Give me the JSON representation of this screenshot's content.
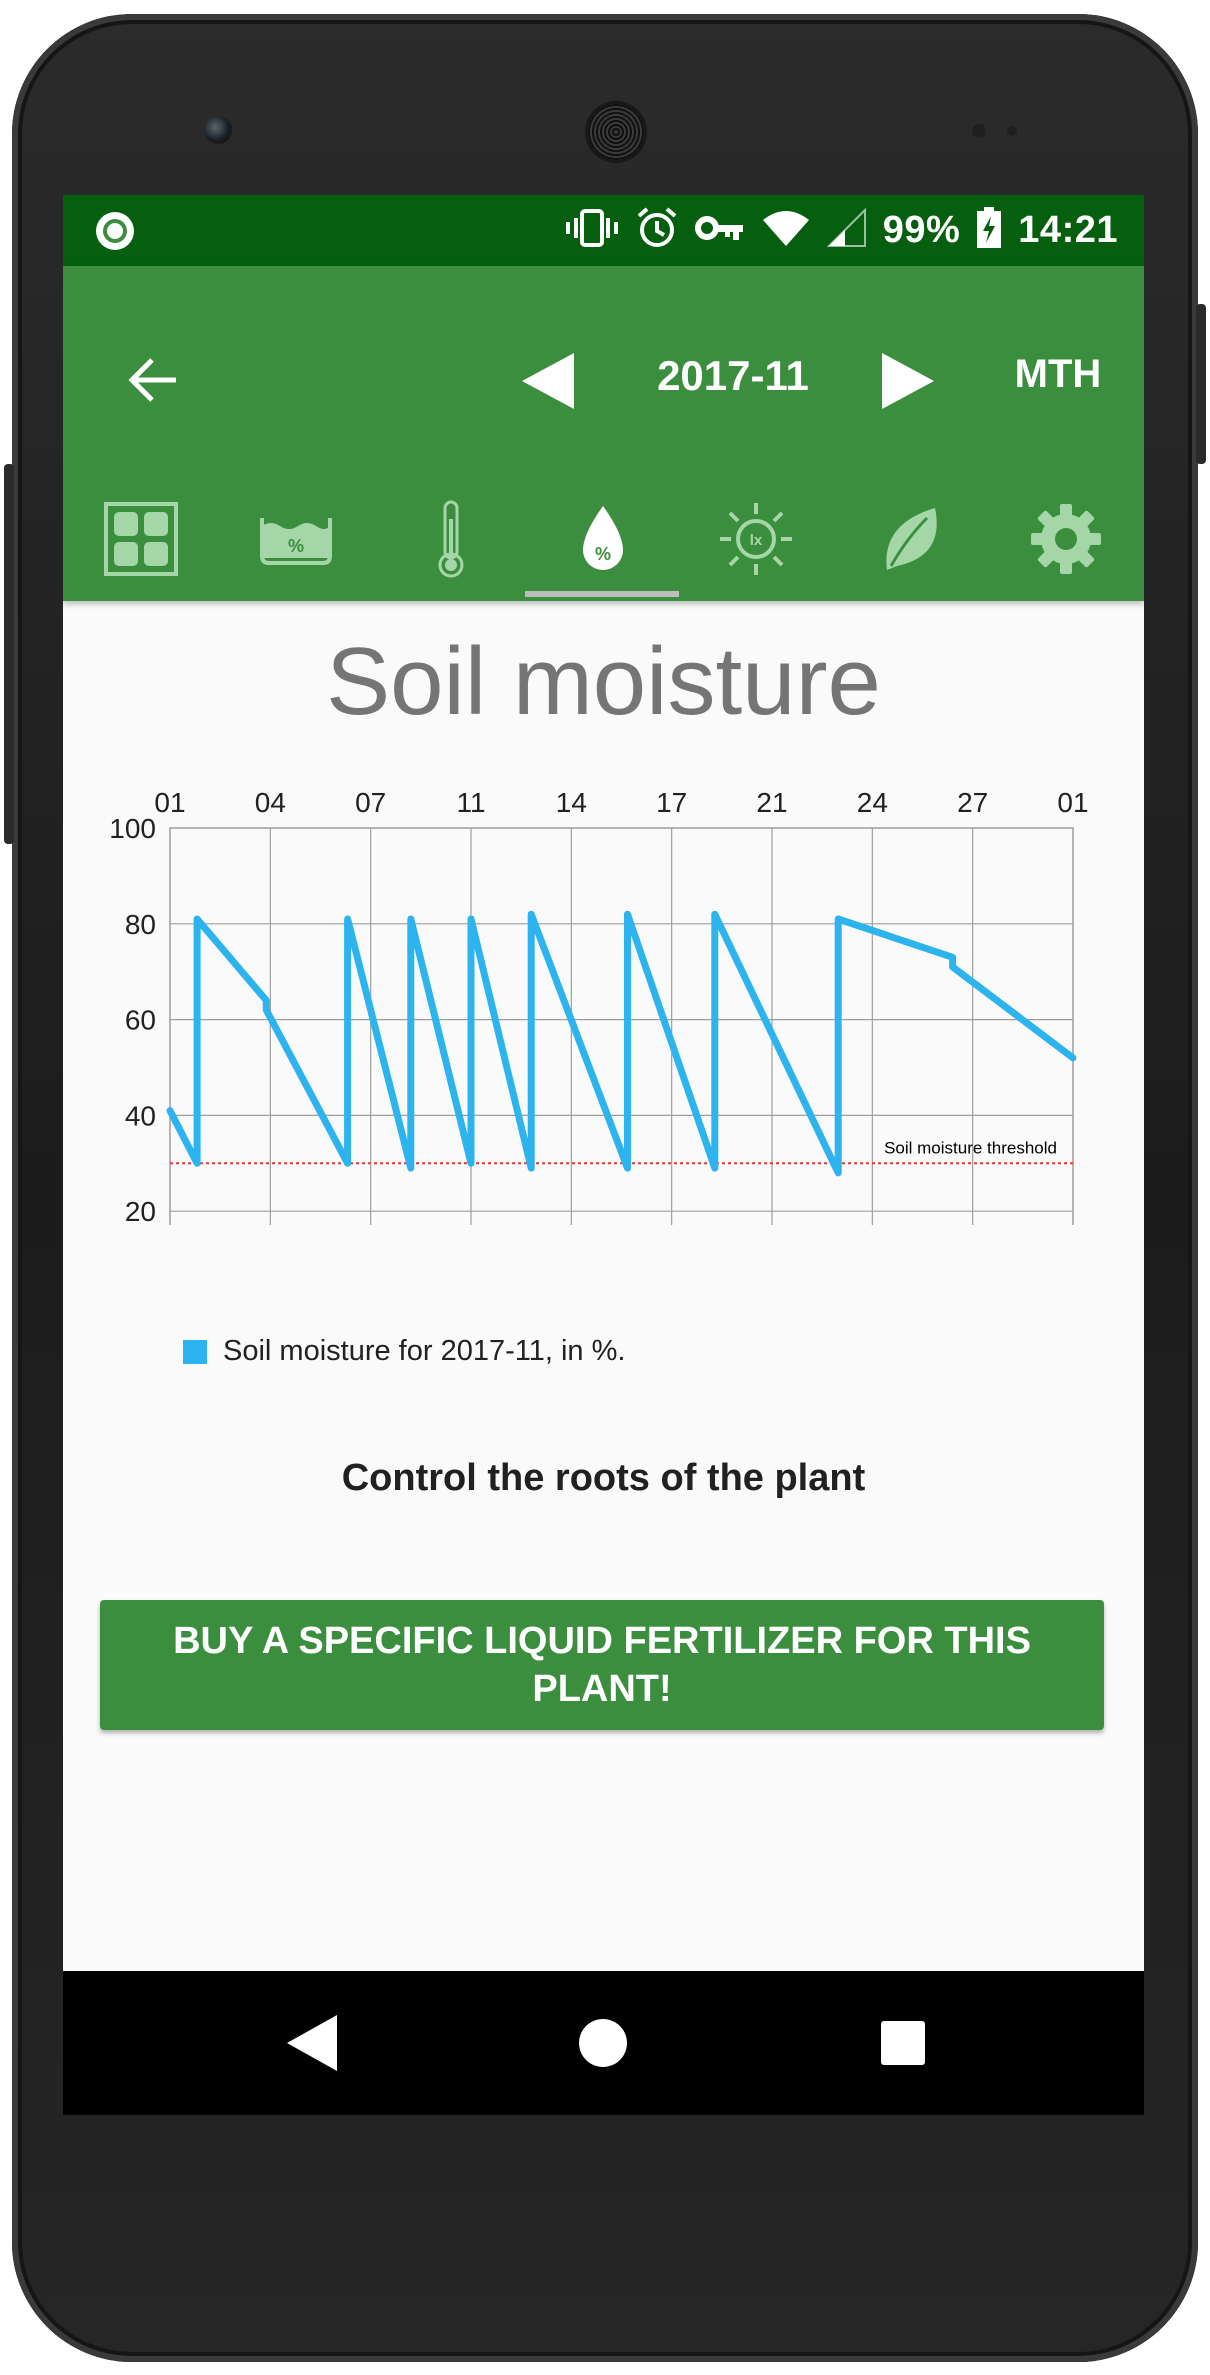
{
  "status_bar": {
    "battery": "99%",
    "time": "14:21",
    "icons": [
      "vibrate-icon",
      "alarm-icon",
      "vpn-key-icon",
      "wifi-icon",
      "signal-icon",
      "battery-charging-icon"
    ]
  },
  "app_bar": {
    "period": "2017-11",
    "range_label": "MTH"
  },
  "tabs": [
    {
      "name": "overview-grid-icon"
    },
    {
      "name": "water-level-icon"
    },
    {
      "name": "thermometer-icon"
    },
    {
      "name": "soil-moisture-drop-icon",
      "selected": true
    },
    {
      "name": "light-lux-icon"
    },
    {
      "name": "leaf-icon"
    },
    {
      "name": "settings-gear-icon"
    }
  ],
  "page": {
    "title": "Soil moisture",
    "subtitle": "Control the roots of the plant",
    "cta_label": "BUY A SPECIFIC LIQUID FERTILIZER FOR THIS PLANT!"
  },
  "colors": {
    "status_bar": "#055f0f",
    "primary": "#3c8e3f",
    "series": "#2db4ef",
    "threshold": "#e53935"
  },
  "chart_data": {
    "type": "line",
    "title": "",
    "x_tick_labels": [
      "01",
      "04",
      "07",
      "11",
      "14",
      "17",
      "21",
      "24",
      "27",
      "01"
    ],
    "ylim": [
      0,
      100
    ],
    "y_ticks": [
      0,
      20,
      40,
      60,
      80,
      100
    ],
    "grid": true,
    "legend": "bottom-left",
    "series": [
      {
        "name": "Soil moisture for 2017-11, in %.",
        "x": [
          1,
          1.9,
          1.9,
          4.2,
          4.2,
          6.9,
          6.9,
          9.0,
          9.0,
          11.0,
          11.0,
          13.0,
          13.0,
          16.2,
          16.2,
          19.1,
          19.1,
          23.2,
          23.2,
          27.0,
          27.0,
          31.0
        ],
        "y": [
          41,
          30,
          81,
          64,
          62,
          30,
          81,
          29,
          81,
          30,
          81,
          29,
          82,
          29,
          82,
          29,
          82,
          28,
          81,
          73,
          71,
          52
        ]
      }
    ],
    "annotations": [
      {
        "label": "Soil moisture threshold",
        "type": "horizontal-line",
        "y": 30
      }
    ]
  }
}
